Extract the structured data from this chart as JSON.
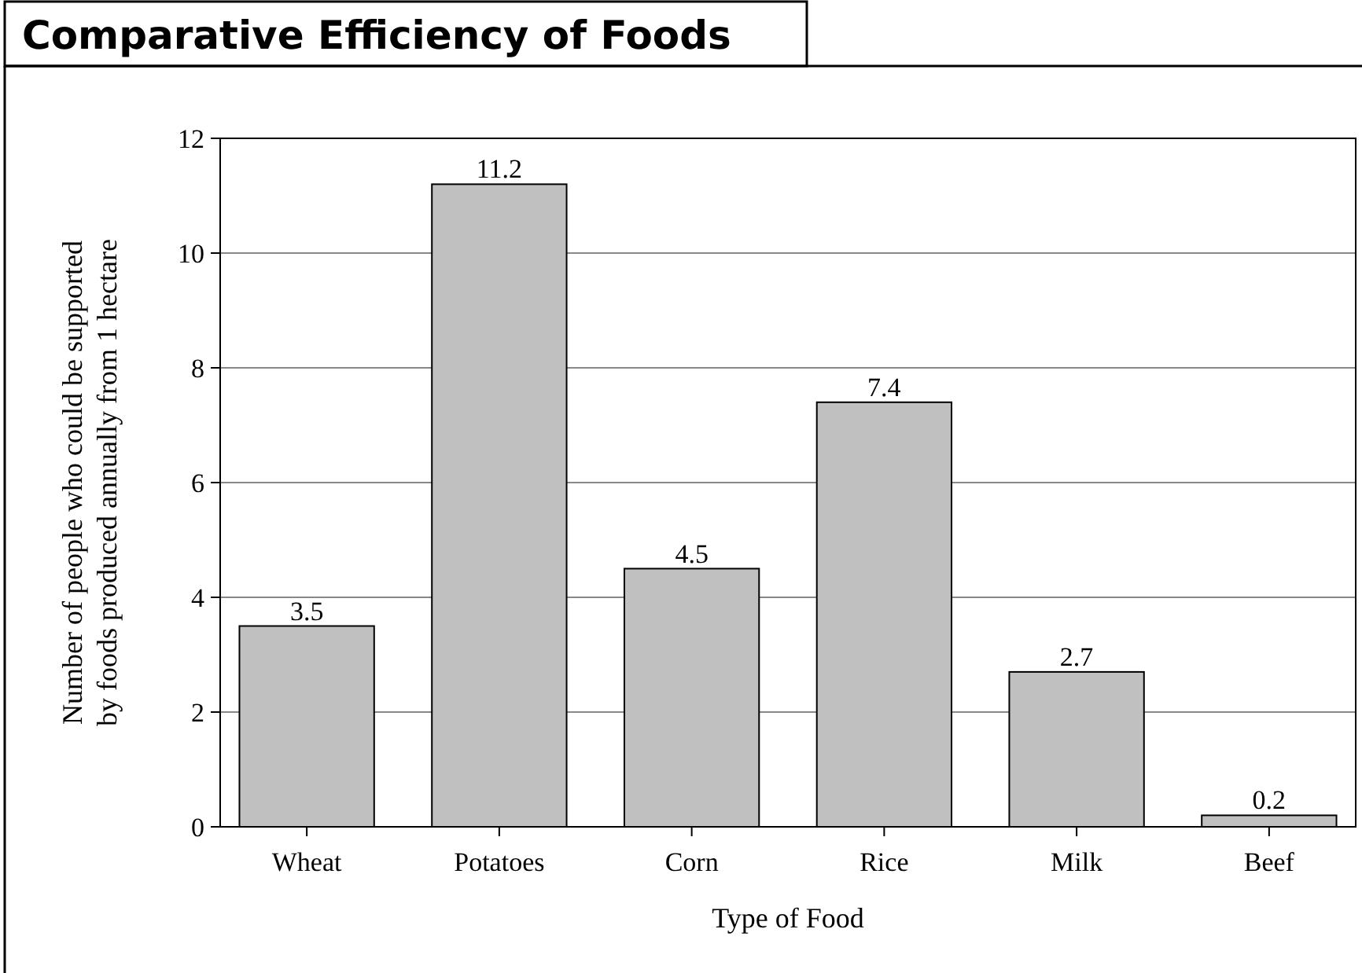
{
  "chart_data": {
    "type": "bar",
    "title": "Comparative Efficiency of Foods",
    "xlabel": "Type of Food",
    "ylabel": "Number of people who could be supported\nby foods produced annually from 1 hectare",
    "categories": [
      "Wheat",
      "Potatoes",
      "Corn",
      "Rice",
      "Milk",
      "Beef"
    ],
    "values": [
      3.5,
      11.2,
      4.5,
      7.4,
      2.7,
      0.2
    ],
    "color": "#c0c0c0",
    "ylim": [
      0,
      12
    ],
    "yticks": [
      0,
      2,
      4,
      6,
      8,
      10,
      12
    ],
    "grid": "y",
    "data_labels": true
  }
}
